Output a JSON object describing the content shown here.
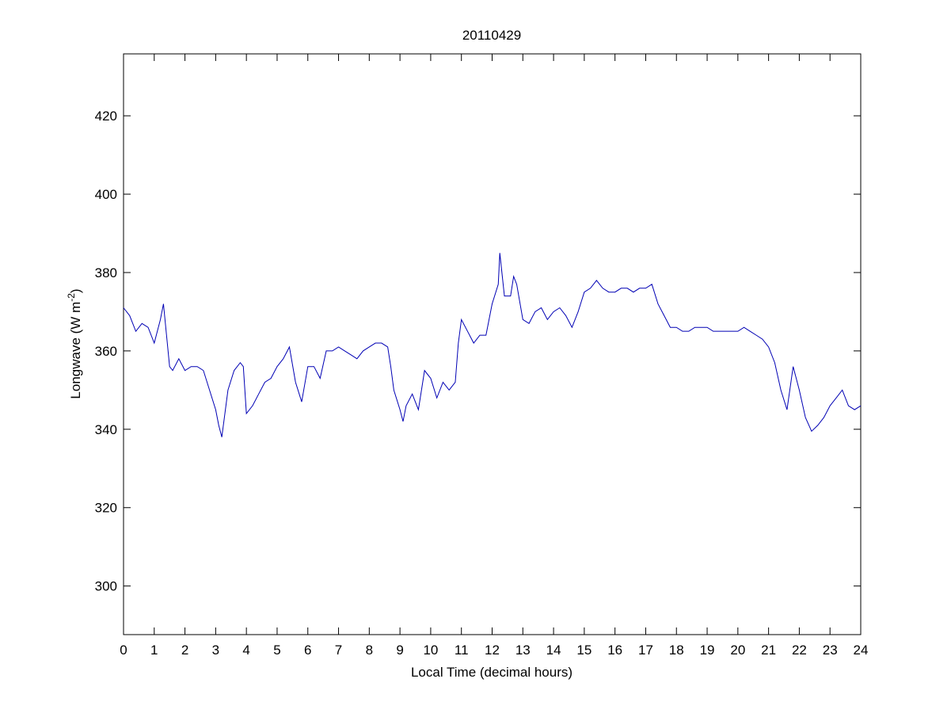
{
  "chart_data": {
    "type": "line",
    "title": "20110429",
    "xlabel": "Local Time (decimal hours)",
    "ylabel": {
      "text": "Longwave (W m",
      "sup": "-2",
      "end": ")"
    },
    "color": "#0000b4",
    "x": [
      0,
      0.2,
      0.4,
      0.6,
      0.8,
      1.0,
      1.2,
      1.3,
      1.4,
      1.5,
      1.6,
      1.8,
      2.0,
      2.2,
      2.4,
      2.6,
      2.8,
      3.0,
      3.1,
      3.2,
      3.4,
      3.6,
      3.8,
      3.9,
      4.0,
      4.2,
      4.4,
      4.6,
      4.8,
      5.0,
      5.2,
      5.4,
      5.6,
      5.8,
      6.0,
      6.2,
      6.4,
      6.6,
      6.8,
      7.0,
      7.2,
      7.4,
      7.6,
      7.8,
      8.0,
      8.2,
      8.4,
      8.6,
      8.7,
      8.8,
      9.0,
      9.1,
      9.2,
      9.4,
      9.6,
      9.8,
      10.0,
      10.2,
      10.4,
      10.6,
      10.8,
      10.9,
      11.0,
      11.2,
      11.4,
      11.6,
      11.8,
      12.0,
      12.2,
      12.25,
      12.4,
      12.6,
      12.7,
      12.8,
      13.0,
      13.2,
      13.4,
      13.6,
      13.8,
      14.0,
      14.2,
      14.4,
      14.6,
      14.8,
      15.0,
      15.2,
      15.4,
      15.6,
      15.8,
      16.0,
      16.2,
      16.4,
      16.6,
      16.8,
      17.0,
      17.2,
      17.4,
      17.6,
      17.8,
      18.0,
      18.2,
      18.4,
      18.6,
      18.8,
      19.0,
      19.2,
      19.4,
      19.6,
      19.8,
      20.0,
      20.2,
      20.4,
      20.6,
      20.8,
      21.0,
      21.2,
      21.4,
      21.6,
      21.8,
      22.0,
      22.2,
      22.4,
      22.6,
      22.8,
      23.0,
      23.2,
      23.4,
      23.6,
      23.8,
      24.0
    ],
    "values": [
      371,
      369,
      365,
      367,
      366,
      362,
      368,
      372,
      364,
      356,
      355,
      358,
      355,
      356,
      356,
      355,
      350,
      345,
      341,
      338,
      350,
      355,
      357,
      356,
      344,
      346,
      349,
      352,
      353,
      356,
      358,
      361,
      352,
      347,
      356,
      356,
      353,
      360,
      360,
      361,
      360,
      359,
      358,
      360,
      361,
      362,
      362,
      361,
      356,
      350,
      345,
      342,
      346,
      349,
      345,
      355,
      353,
      348,
      352,
      350,
      352,
      362,
      368,
      365,
      362,
      364,
      364,
      372,
      377,
      385,
      374,
      374,
      379,
      377,
      368,
      367,
      370,
      371,
      368,
      370,
      371,
      369,
      366,
      370,
      375,
      376,
      378,
      376,
      375,
      375,
      376,
      376,
      375,
      376,
      376,
      377,
      372,
      369,
      366,
      366,
      365,
      365,
      366,
      366,
      366,
      365,
      365,
      365,
      365,
      365,
      366,
      365,
      364,
      363,
      361,
      357,
      350,
      345,
      356,
      350,
      343,
      339.5,
      341,
      343,
      346,
      348,
      350,
      346,
      345,
      346
    ],
    "xlim": [
      0,
      24
    ],
    "ylim": [
      287.6,
      435.8
    ],
    "xticks": [
      0,
      1,
      2,
      3,
      4,
      5,
      6,
      7,
      8,
      9,
      10,
      11,
      12,
      13,
      14,
      15,
      16,
      17,
      18,
      19,
      20,
      21,
      22,
      23,
      24
    ],
    "yticks": [
      300,
      320,
      340,
      360,
      380,
      400,
      420
    ]
  }
}
